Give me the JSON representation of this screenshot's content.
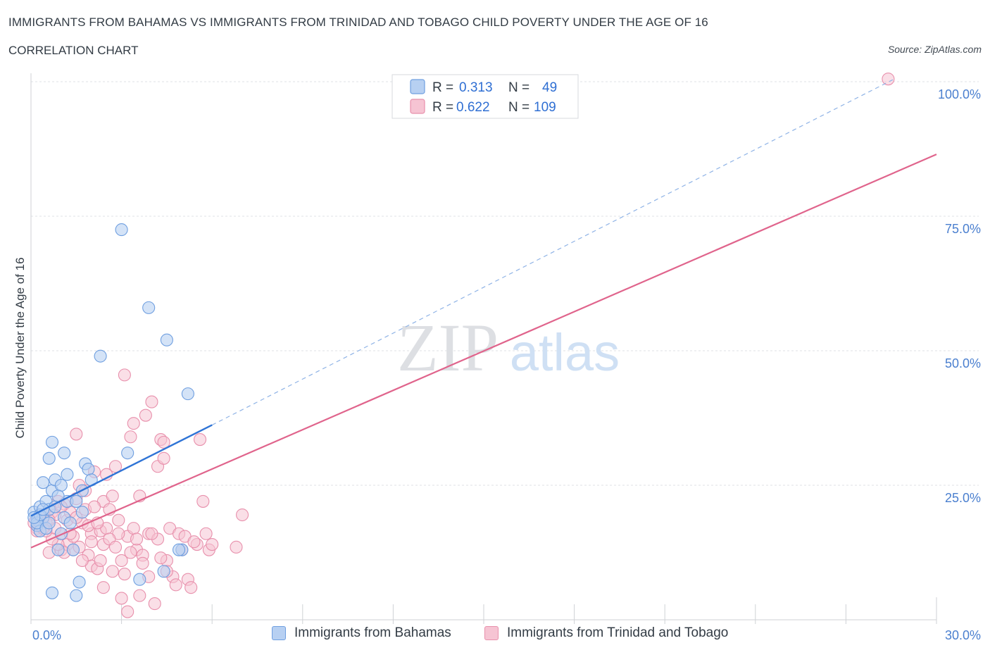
{
  "header": {
    "title": "IMMIGRANTS FROM BAHAMAS VS IMMIGRANTS FROM TRINIDAD AND TOBAGO CHILD POVERTY UNDER THE AGE OF 16",
    "subtitle": "CORRELATION CHART",
    "source": "Source: ZipAtlas.com"
  },
  "watermark": {
    "zip": "ZIP",
    "atlas": "atlas"
  },
  "colors": {
    "blue_fill": "#b7d0f2",
    "blue_stroke": "#6f9fe0",
    "blue_line": "#2f74d6",
    "pink_fill": "#f6c4d3",
    "pink_stroke": "#e890ac",
    "pink_line": "#e0648c",
    "tick_color": "#4a7fcf"
  },
  "legend": {
    "rows": [
      {
        "r_label": "R =",
        "r_value": "0.313",
        "n_label": "N =",
        "n_value": "49"
      },
      {
        "r_label": "R =",
        "r_value": "0.622",
        "n_label": "N =",
        "n_value": "109"
      }
    ]
  },
  "bottom_legend": {
    "series1": "Immigrants from Bahamas",
    "series2": "Immigrants from Trinidad and Tobago"
  },
  "chart_data": {
    "type": "scatter",
    "title": "IMMIGRANTS FROM BAHAMAS VS IMMIGRANTS FROM TRINIDAD AND TOBAGO CHILD POVERTY UNDER THE AGE OF 16",
    "xlabel": "",
    "ylabel": "Child Poverty Under the Age of 16",
    "xlim": [
      0,
      30
    ],
    "ylim": [
      0,
      100
    ],
    "x_tick_labels": [
      "0.0%",
      "30.0%"
    ],
    "y_ticks": [
      25,
      50,
      75,
      100
    ],
    "y_tick_labels": [
      "25.0%",
      "50.0%",
      "75.0%",
      "100.0%"
    ],
    "series": [
      {
        "name": "Immigrants from Bahamas",
        "R": 0.313,
        "N": 49,
        "trend": {
          "x": [
            0.0,
            6.0
          ],
          "y": [
            19.3,
            36.2
          ],
          "dashed_to": {
            "x": 28.6,
            "y": 100.5
          }
        },
        "points": [
          [
            0.1,
            20.0
          ],
          [
            0.2,
            18.5
          ],
          [
            0.3,
            21.0
          ],
          [
            0.2,
            17.5
          ],
          [
            0.4,
            19.0
          ],
          [
            0.5,
            22.0
          ],
          [
            0.3,
            16.5
          ],
          [
            0.6,
            20.5
          ],
          [
            0.7,
            24.0
          ],
          [
            0.4,
            25.5
          ],
          [
            0.6,
            30.0
          ],
          [
            0.7,
            33.0
          ],
          [
            0.8,
            26.0
          ],
          [
            0.9,
            13.0
          ],
          [
            1.0,
            25.0
          ],
          [
            1.1,
            19.0
          ],
          [
            1.0,
            16.0
          ],
          [
            1.1,
            31.0
          ],
          [
            1.2,
            22.0
          ],
          [
            1.3,
            18.0
          ],
          [
            1.2,
            27.0
          ],
          [
            1.4,
            13.0
          ],
          [
            1.5,
            22.0
          ],
          [
            1.6,
            7.0
          ],
          [
            1.5,
            4.5
          ],
          [
            1.7,
            20.0
          ],
          [
            1.8,
            29.0
          ],
          [
            1.9,
            28.0
          ],
          [
            2.0,
            26.0
          ],
          [
            2.3,
            49.0
          ],
          [
            3.0,
            72.5
          ],
          [
            3.2,
            31.0
          ],
          [
            3.6,
            7.5
          ],
          [
            3.9,
            58.0
          ],
          [
            4.4,
            9.0
          ],
          [
            4.5,
            52.0
          ],
          [
            5.0,
            13.0
          ],
          [
            5.2,
            42.0
          ],
          [
            0.7,
            5.0
          ],
          [
            0.2,
            18.0
          ],
          [
            0.3,
            19.5
          ],
          [
            0.5,
            17.0
          ],
          [
            0.8,
            21.0
          ],
          [
            0.1,
            19.0
          ],
          [
            0.4,
            20.5
          ],
          [
            0.6,
            18.0
          ],
          [
            1.7,
            24.0
          ],
          [
            0.9,
            23.0
          ],
          [
            4.9,
            13.0
          ]
        ]
      },
      {
        "name": "Immigrants from Trinidad and Tobago",
        "R": 0.622,
        "N": 109,
        "trend": {
          "x": [
            0.0,
            30.0
          ],
          "y": [
            13.4,
            86.5
          ]
        },
        "points": [
          [
            0.1,
            18.0
          ],
          [
            0.2,
            17.0
          ],
          [
            0.3,
            19.0
          ],
          [
            0.2,
            16.5
          ],
          [
            0.4,
            18.5
          ],
          [
            0.3,
            17.5
          ],
          [
            0.5,
            18.0
          ],
          [
            0.6,
            12.5
          ],
          [
            0.7,
            20.0
          ],
          [
            0.8,
            17.0
          ],
          [
            0.9,
            22.0
          ],
          [
            1.0,
            16.0
          ],
          [
            1.0,
            13.0
          ],
          [
            1.1,
            21.5
          ],
          [
            1.2,
            18.5
          ],
          [
            1.2,
            14.0
          ],
          [
            1.3,
            20.0
          ],
          [
            1.4,
            13.0
          ],
          [
            1.5,
            22.5
          ],
          [
            1.5,
            34.5
          ],
          [
            1.6,
            25.0
          ],
          [
            1.7,
            18.0
          ],
          [
            1.8,
            24.0
          ],
          [
            1.9,
            12.0
          ],
          [
            2.0,
            10.0
          ],
          [
            2.0,
            16.0
          ],
          [
            2.1,
            27.5
          ],
          [
            2.2,
            9.5
          ],
          [
            2.3,
            16.5
          ],
          [
            2.4,
            22.0
          ],
          [
            2.4,
            14.0
          ],
          [
            2.5,
            27.0
          ],
          [
            2.6,
            20.5
          ],
          [
            2.7,
            23.0
          ],
          [
            2.8,
            28.5
          ],
          [
            2.9,
            18.5
          ],
          [
            3.0,
            11.0
          ],
          [
            3.0,
            4.0
          ],
          [
            3.1,
            45.5
          ],
          [
            3.2,
            15.5
          ],
          [
            3.3,
            34.0
          ],
          [
            3.4,
            17.0
          ],
          [
            3.4,
            36.5
          ],
          [
            3.5,
            13.0
          ],
          [
            3.6,
            4.5
          ],
          [
            3.6,
            23.0
          ],
          [
            3.7,
            12.0
          ],
          [
            3.8,
            38.0
          ],
          [
            3.9,
            16.0
          ],
          [
            4.0,
            40.5
          ],
          [
            4.1,
            3.0
          ],
          [
            4.2,
            28.5
          ],
          [
            4.3,
            33.5
          ],
          [
            4.4,
            33.0
          ],
          [
            4.4,
            30.0
          ],
          [
            4.5,
            11.0
          ],
          [
            4.6,
            17.0
          ],
          [
            4.7,
            8.0
          ],
          [
            4.8,
            6.5
          ],
          [
            4.9,
            16.0
          ],
          [
            5.0,
            13.0
          ],
          [
            5.1,
            15.5
          ],
          [
            5.2,
            7.5
          ],
          [
            5.3,
            6.0
          ],
          [
            5.5,
            14.0
          ],
          [
            5.6,
            33.5
          ],
          [
            5.7,
            22.0
          ],
          [
            5.8,
            16.0
          ],
          [
            5.9,
            13.0
          ],
          [
            6.0,
            14.0
          ],
          [
            6.8,
            13.5
          ],
          [
            7.0,
            19.5
          ],
          [
            2.5,
            17.0
          ],
          [
            2.9,
            16.0
          ],
          [
            1.9,
            17.5
          ],
          [
            1.7,
            11.0
          ],
          [
            1.6,
            13.5
          ],
          [
            2.2,
            18.0
          ],
          [
            2.6,
            15.0
          ],
          [
            3.3,
            12.5
          ],
          [
            3.9,
            8.0
          ],
          [
            4.2,
            15.0
          ],
          [
            4.0,
            16.0
          ],
          [
            1.4,
            15.5
          ],
          [
            1.1,
            12.5
          ],
          [
            0.9,
            14.0
          ],
          [
            0.8,
            19.5
          ],
          [
            0.7,
            15.0
          ],
          [
            0.6,
            18.5
          ],
          [
            2.0,
            14.5
          ],
          [
            2.3,
            11.0
          ],
          [
            2.7,
            9.0
          ],
          [
            3.1,
            8.5
          ],
          [
            3.5,
            15.0
          ],
          [
            3.7,
            10.5
          ],
          [
            4.3,
            11.5
          ],
          [
            1.3,
            16.0
          ],
          [
            1.8,
            20.5
          ],
          [
            0.5,
            16.5
          ],
          [
            0.4,
            17.0
          ],
          [
            1.0,
            21.0
          ],
          [
            1.5,
            19.0
          ],
          [
            2.1,
            21.0
          ],
          [
            2.4,
            6.0
          ],
          [
            2.8,
            13.5
          ],
          [
            3.2,
            1.5
          ],
          [
            4.5,
            9.0
          ],
          [
            5.4,
            14.5
          ],
          [
            28.4,
            100.5
          ]
        ]
      }
    ]
  }
}
